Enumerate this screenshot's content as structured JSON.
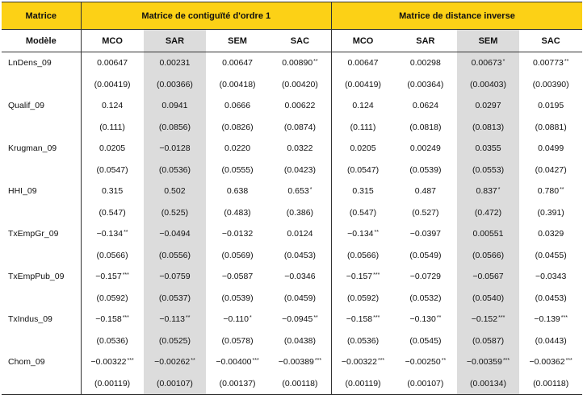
{
  "header": {
    "matrice_label": "Matrice",
    "group1": "Matrice de contiguïté d'ordre 1",
    "group2": "Matrice de distance inverse",
    "modele_label": "Modèle",
    "models": [
      "MCO",
      "SAR",
      "SEM",
      "SAC",
      "MCO",
      "SAR",
      "SEM",
      "SAC"
    ]
  },
  "shaded_columns": [
    1,
    6
  ],
  "rows": [
    {
      "name": "LnDens_09",
      "coef": [
        [
          "0.00647",
          ""
        ],
        [
          "0.00231",
          ""
        ],
        [
          "0.00647",
          ""
        ],
        [
          "0.00890",
          "**"
        ],
        [
          "0.00647",
          ""
        ],
        [
          "0.00298",
          ""
        ],
        [
          "0.00673",
          "*"
        ],
        [
          "0.00773",
          "**"
        ]
      ],
      "se": [
        "(0.00419)",
        "(0.00366)",
        "(0.00418)",
        "(0.00420)",
        "(0.00419)",
        "(0.00364)",
        "(0.00403)",
        "(0.00390)"
      ]
    },
    {
      "name": "Qualif_09",
      "coef": [
        [
          "0.124",
          ""
        ],
        [
          "0.0941",
          ""
        ],
        [
          "0.0666",
          ""
        ],
        [
          "0.00622",
          ""
        ],
        [
          "0.124",
          ""
        ],
        [
          "0.0624",
          ""
        ],
        [
          "0.0297",
          ""
        ],
        [
          "0.0195",
          ""
        ]
      ],
      "se": [
        "(0.111)",
        "(0.0856)",
        "(0.0826)",
        "(0.0874)",
        "(0.111)",
        "(0.0818)",
        "(0.0813)",
        "(0.0881)"
      ]
    },
    {
      "name": "Krugman_09",
      "coef": [
        [
          "0.0205",
          ""
        ],
        [
          "−0.0128",
          ""
        ],
        [
          "0.0220",
          ""
        ],
        [
          "0.0322",
          ""
        ],
        [
          "0.0205",
          ""
        ],
        [
          "0.00249",
          ""
        ],
        [
          "0.0355",
          ""
        ],
        [
          "0.0499",
          ""
        ]
      ],
      "se": [
        "(0.0547)",
        "(0.0536)",
        "(0.0555)",
        "(0.0423)",
        "(0.0547)",
        "(0.0539)",
        "(0.0553)",
        "(0.0427)"
      ]
    },
    {
      "name": "HHI_09",
      "coef": [
        [
          "0.315",
          ""
        ],
        [
          "0.502",
          ""
        ],
        [
          "0.638",
          ""
        ],
        [
          "0.653",
          "*"
        ],
        [
          "0.315",
          ""
        ],
        [
          "0.487",
          ""
        ],
        [
          "0.837",
          "*"
        ],
        [
          "0.780",
          "**"
        ]
      ],
      "se": [
        "(0.547)",
        "(0.525)",
        "(0.483)",
        "(0.386)",
        "(0.547)",
        "(0.527)",
        "(0.472)",
        "(0.391)"
      ]
    },
    {
      "name": "TxEmpGr_09",
      "coef": [
        [
          "−0.134",
          "**"
        ],
        [
          "−0.0494",
          ""
        ],
        [
          "−0.0132",
          ""
        ],
        [
          "0.0124",
          ""
        ],
        [
          "−0.134",
          "**"
        ],
        [
          "−0.0397",
          ""
        ],
        [
          "0.00551",
          ""
        ],
        [
          "0.0329",
          ""
        ]
      ],
      "se": [
        "(0.0566)",
        "(0.0556)",
        "(0.0569)",
        "(0.0453)",
        "(0.0566)",
        "(0.0549)",
        "(0.0566)",
        "(0.0455)"
      ]
    },
    {
      "name": "TxEmpPub_09",
      "coef": [
        [
          "−0.157",
          "***"
        ],
        [
          "−0.0759",
          ""
        ],
        [
          "−0.0587",
          ""
        ],
        [
          "−0.0346",
          ""
        ],
        [
          "−0.157",
          "***"
        ],
        [
          "−0.0729",
          ""
        ],
        [
          "−0.0567",
          ""
        ],
        [
          "−0.0343",
          ""
        ]
      ],
      "se": [
        "(0.0592)",
        "(0.0537)",
        "(0.0539)",
        "(0.0459)",
        "(0.0592)",
        "(0.0532)",
        "(0.0540)",
        "(0.0453)"
      ]
    },
    {
      "name": "TxIndus_09",
      "coef": [
        [
          "−0.158",
          "***"
        ],
        [
          "−0.113",
          "**"
        ],
        [
          "−0.110",
          "*"
        ],
        [
          "−0.0945",
          "**"
        ],
        [
          "−0.158",
          "***"
        ],
        [
          "−0.130",
          "**"
        ],
        [
          "−0.152",
          "***"
        ],
        [
          "−0.139",
          "***"
        ]
      ],
      "se": [
        "(0.0536)",
        "(0.0525)",
        "(0.0578)",
        "(0.0438)",
        "(0.0536)",
        "(0.0545)",
        "(0.0587)",
        "(0.0443)"
      ]
    },
    {
      "name": "Chom_09",
      "coef": [
        [
          "−0.00322",
          "***"
        ],
        [
          "−0.00262",
          "**"
        ],
        [
          "−0.00400",
          "***"
        ],
        [
          "−0.00389",
          "***"
        ],
        [
          "−0.00322",
          "***"
        ],
        [
          "−0.00250",
          "**"
        ],
        [
          "−0.00359",
          "***"
        ],
        [
          "−0.00362",
          "***"
        ]
      ],
      "se": [
        "(0.00119)",
        "(0.00107)",
        "(0.00137)",
        "(0.00118)",
        "(0.00119)",
        "(0.00107)",
        "(0.00134)",
        "(0.00118)"
      ]
    }
  ],
  "colors": {
    "header_band": "#fcd116",
    "shade": "#dcdcdc"
  }
}
